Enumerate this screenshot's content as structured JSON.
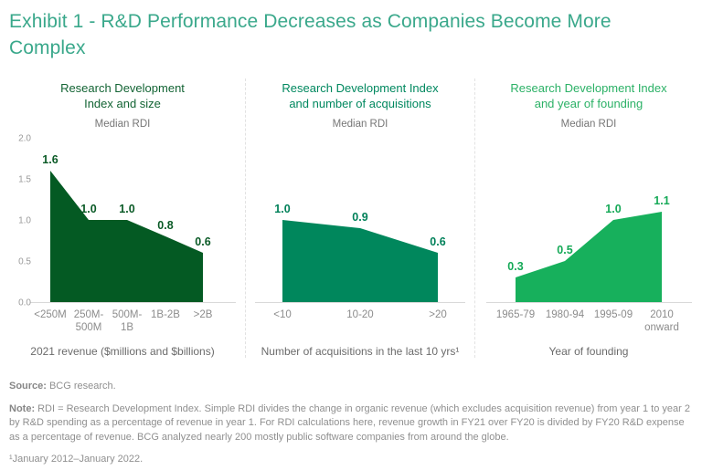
{
  "page": {
    "title": "Exhibit 1 - R&D Performance Decreases as Companies Become More Complex"
  },
  "colors": {
    "main_title_teal": "#3AA88B",
    "dark_green": "#045A23",
    "medium_green": "#00875C",
    "bright_green": "#17B05C",
    "axis_gray": "#d9d9d9",
    "tick_text_gray": "#9a9a9a"
  },
  "chart_data": [
    {
      "type": "area",
      "title": "Research Development\nIndex and size",
      "title_color": "#136434",
      "subtitle": "Median RDI",
      "categories": [
        "<250M",
        "250M-\n500M",
        "500M-\n1B",
        "1B-2B",
        ">2B"
      ],
      "values": [
        1.6,
        1.0,
        1.0,
        0.8,
        0.6
      ],
      "data_labels": [
        "1.6",
        "1.0",
        "1.0",
        "0.8",
        "0.6"
      ],
      "xlabel": "2021 revenue ($millions and $billions)",
      "ylabel": "Median RDI",
      "ylim": [
        0,
        2.0
      ],
      "y_ticks": [
        "2.0",
        "1.5",
        "1.0",
        "0.5",
        "0.0"
      ],
      "grid": false,
      "fill": "#045A23",
      "label_color": "#0A5A26"
    },
    {
      "type": "area",
      "title": "Research Development Index\nand number of acquisitions",
      "title_color": "#00885F",
      "subtitle": "Median RDI",
      "categories": [
        "<10",
        "10-20",
        ">20"
      ],
      "values": [
        1.0,
        0.9,
        0.6
      ],
      "data_labels": [
        "1.0",
        "0.9",
        "0.6"
      ],
      "xlabel": "Number of acquisitions in the last 10 yrs¹",
      "ylabel": "Median RDI",
      "ylim": [
        0,
        2.0
      ],
      "y_ticks": [],
      "grid": false,
      "fill": "#00875C",
      "label_color": "#008059"
    },
    {
      "type": "area",
      "title": "Research Development Index\nand year of founding",
      "title_color": "#2BB166",
      "subtitle": "Median RDI",
      "categories": [
        "1965-79",
        "1980-94",
        "1995-09",
        "2010\nonward"
      ],
      "values": [
        0.3,
        0.5,
        1.0,
        1.1
      ],
      "data_labels": [
        "0.3",
        "0.5",
        "1.0",
        "1.1"
      ],
      "xlabel": "Year of founding",
      "ylabel": "Median RDI",
      "ylim": [
        0,
        2.0
      ],
      "y_ticks": [],
      "grid": false,
      "fill": "#17B05C",
      "label_color": "#15A957"
    }
  ],
  "footer": {
    "source_label": "Source:",
    "source_text": "BCG research.",
    "note_label": "Note:",
    "note_text": "RDI = Research Development Index. Simple RDI divides the change in organic revenue (which excludes acquisition revenue) from year 1 to year 2 by R&D spending as a percentage of revenue in year 1. For RDI calculations here, revenue growth in FY21 over FY20 is divided by FY20 R&D expense as a percentage of revenue. BCG analyzed nearly 200 mostly public software companies from around the globe.",
    "footnote": "¹January 2012–January 2022."
  }
}
